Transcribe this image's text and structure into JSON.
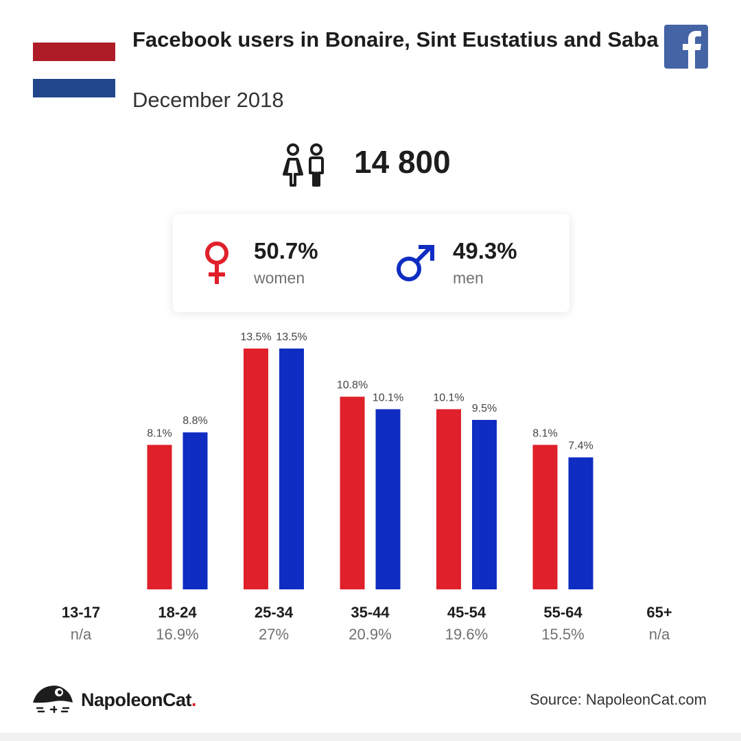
{
  "header": {
    "title": "Facebook users in Bonaire, Sint Eustatius and Saba",
    "subtitle": "December 2018",
    "flag_colors": [
      "#ae1c28",
      "#ffffff",
      "#21468b"
    ],
    "social_icon": "facebook-icon"
  },
  "total": {
    "value": "14 800",
    "icon": "people-icon"
  },
  "gender": {
    "women": {
      "pct": "50.7%",
      "label": "women",
      "color": "#e0202a",
      "icon": "female-symbol-icon"
    },
    "men": {
      "pct": "49.3%",
      "label": "men",
      "color": "#0f2dc2",
      "icon": "male-symbol-icon"
    }
  },
  "chart_data": {
    "type": "bar",
    "categories": [
      "13-17",
      "18-24",
      "25-34",
      "35-44",
      "45-54",
      "55-64",
      "65+"
    ],
    "category_totals": [
      "n/a",
      "16.9%",
      "27%",
      "20.9%",
      "19.6%",
      "15.5%",
      "n/a"
    ],
    "series": [
      {
        "color": "#e0202a",
        "values": [
          null,
          8.1,
          13.5,
          10.8,
          10.1,
          8.1,
          null
        ],
        "labels": [
          "",
          "8.1%",
          "13.5%",
          "10.8%",
          "10.1%",
          "8.1%",
          ""
        ]
      },
      {
        "color": "#0f2dc2",
        "values": [
          null,
          8.8,
          13.5,
          10.1,
          9.5,
          7.4,
          null
        ],
        "labels": [
          "",
          "8.8%",
          "13.5%",
          "10.1%",
          "9.5%",
          "7.4%",
          ""
        ]
      }
    ],
    "ylim": [
      0,
      13.5
    ],
    "grid": false,
    "legend": "none"
  },
  "footer": {
    "brand": "NapoleonCat",
    "brand_dot": ".",
    "source": "Source: NapoleonCat.com"
  }
}
